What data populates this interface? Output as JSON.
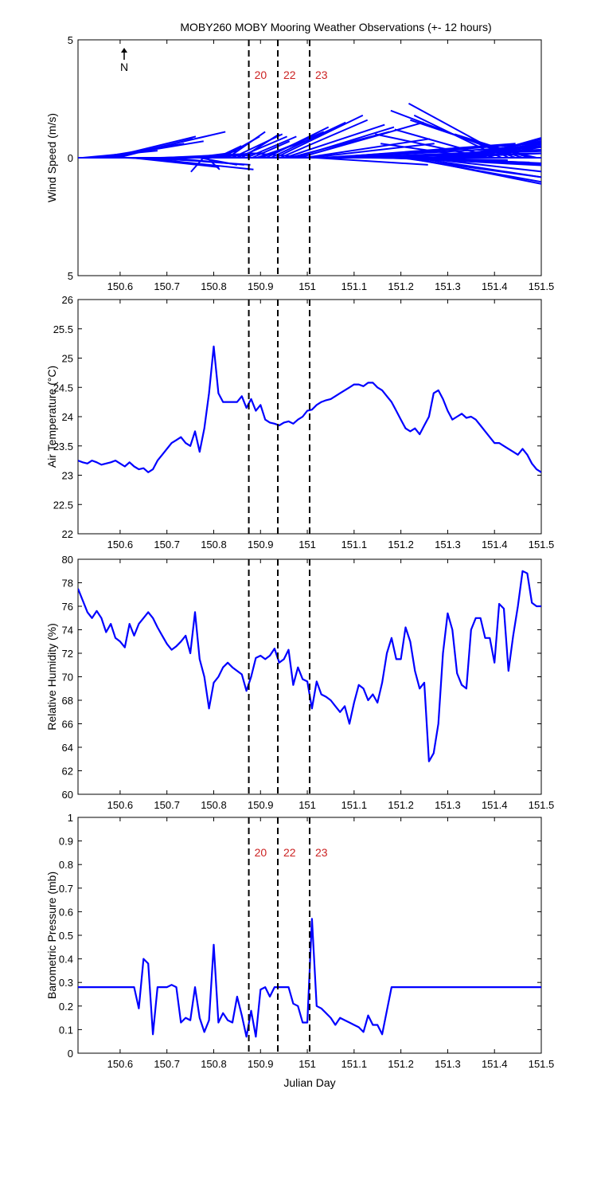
{
  "figure_title": "MOBY260 MOBY Mooring Weather Observations (+- 12 hours)",
  "north_label": "N",
  "x_tick_labels": [
    "150.6",
    "150.7",
    "150.8",
    "150.9",
    "151",
    "151.1",
    "151.2",
    "151.3",
    "151.4",
    "151.5"
  ],
  "colors": {
    "series": "#0000ff",
    "marker_line": "#000000",
    "marker_label": "#cc2222",
    "axes": "#000000"
  },
  "chart_data": [
    {
      "type": "line",
      "subtype": "wind-vector (stick) plot",
      "ylabel": "Wind Speed (m/s)",
      "xlabel": "",
      "xlim": [
        150.51,
        151.5
      ],
      "ylim": [
        -5,
        5
      ],
      "y_tick_labels": [
        "5",
        "0",
        "5"
      ],
      "markers": [
        {
          "label": "20",
          "x": 150.875
        },
        {
          "label": "22",
          "x": 150.937
        },
        {
          "label": "23",
          "x": 151.005
        }
      ],
      "vectors": [
        {
          "x": 150.52,
          "u": 0.6,
          "v": 0.3
        },
        {
          "x": 150.55,
          "u": 0.7,
          "v": 0.6
        },
        {
          "x": 150.565,
          "u": 0.8,
          "v": 0.7
        },
        {
          "x": 150.575,
          "u": 0.7,
          "v": 0.9
        },
        {
          "x": 150.585,
          "u": 0.9,
          "v": 1.1
        },
        {
          "x": 150.595,
          "u": 0.6,
          "v": 0.8
        },
        {
          "x": 150.61,
          "u": 0.5,
          "v": -0.1
        },
        {
          "x": 150.625,
          "u": 0.7,
          "v": -0.4
        },
        {
          "x": 150.645,
          "u": 0.9,
          "v": -0.5
        },
        {
          "x": 150.665,
          "u": 0.8,
          "v": -0.3
        },
        {
          "x": 150.685,
          "u": 0.7,
          "v": 0.1
        },
        {
          "x": 150.695,
          "u": 0.8,
          "v": 0.2
        },
        {
          "x": 150.705,
          "u": 0.6,
          "v": -0.3
        },
        {
          "x": 150.72,
          "u": 0.6,
          "v": 0.1
        },
        {
          "x": 150.74,
          "u": 0.6,
          "v": 0.2
        },
        {
          "x": 150.755,
          "u": 0.3,
          "v": 0.2
        },
        {
          "x": 150.77,
          "u": 0.3,
          "v": -0.3
        },
        {
          "x": 150.778,
          "u": -0.1,
          "v": -0.6
        },
        {
          "x": 150.786,
          "u": 0.1,
          "v": -0.5
        },
        {
          "x": 150.796,
          "u": 0.2,
          "v": 0.3
        },
        {
          "x": 150.806,
          "u": 0.2,
          "v": 0.5
        },
        {
          "x": 150.818,
          "u": 0.3,
          "v": 0.9
        },
        {
          "x": 150.83,
          "u": 0.3,
          "v": 1.1
        },
        {
          "x": 150.84,
          "u": 0.4,
          "v": 1.0
        },
        {
          "x": 150.85,
          "u": 0.4,
          "v": 0.9
        },
        {
          "x": 150.86,
          "u": 0.3,
          "v": 1.0
        },
        {
          "x": 150.87,
          "u": 0.4,
          "v": 0.9
        },
        {
          "x": 150.882,
          "u": 0.3,
          "v": 0.7
        },
        {
          "x": 150.892,
          "u": 0.5,
          "v": 0.9
        },
        {
          "x": 150.902,
          "u": 0.5,
          "v": 1.1
        },
        {
          "x": 150.912,
          "u": 0.5,
          "v": 1.3
        },
        {
          "x": 150.922,
          "u": 0.6,
          "v": 1.5
        },
        {
          "x": 150.932,
          "u": 0.7,
          "v": 1.8
        },
        {
          "x": 150.942,
          "u": 0.7,
          "v": 1.6
        },
        {
          "x": 150.952,
          "u": 0.8,
          "v": 1.4
        },
        {
          "x": 150.962,
          "u": 0.8,
          "v": 1.1
        },
        {
          "x": 150.972,
          "u": 0.8,
          "v": 1.3
        },
        {
          "x": 150.982,
          "u": 1.0,
          "v": 1.5
        },
        {
          "x": 150.995,
          "u": 1.0,
          "v": 0.8
        },
        {
          "x": 151.005,
          "u": 1.0,
          "v": 0.6
        },
        {
          "x": 151.01,
          "u": -0.5,
          "v": 0.2
        },
        {
          "x": 151.018,
          "u": 0.9,
          "v": -0.3
        },
        {
          "x": 151.03,
          "u": 1.2,
          "v": 0.4
        },
        {
          "x": 151.045,
          "u": 1.5,
          "v": 0.6
        },
        {
          "x": 151.06,
          "u": 1.7,
          "v": 0.5
        },
        {
          "x": 151.075,
          "u": 1.8,
          "v": 0.7
        },
        {
          "x": 151.09,
          "u": 1.8,
          "v": 0.4
        },
        {
          "x": 151.105,
          "u": 1.6,
          "v": 0.3
        },
        {
          "x": 151.12,
          "u": 1.5,
          "v": 0.2
        },
        {
          "x": 151.135,
          "u": 1.1,
          "v": -0.1
        },
        {
          "x": 151.155,
          "u": 1.2,
          "v": -0.2
        },
        {
          "x": 151.175,
          "u": 1.4,
          "v": -0.3
        },
        {
          "x": 151.19,
          "u": 1.8,
          "v": -0.5
        },
        {
          "x": 151.2,
          "u": 1.5,
          "v": -1.1
        },
        {
          "x": 151.21,
          "u": 1.7,
          "v": -1.6
        },
        {
          "x": 151.22,
          "u": 1.8,
          "v": -1.9
        },
        {
          "x": 151.23,
          "u": 1.6,
          "v": -1.3
        },
        {
          "x": 151.24,
          "u": 1.5,
          "v": -0.9
        },
        {
          "x": 151.25,
          "u": 1.2,
          "v": -0.3
        },
        {
          "x": 151.26,
          "u": 1.0,
          "v": 0.2
        },
        {
          "x": 151.27,
          "u": 1.3,
          "v": 0.7
        },
        {
          "x": 151.28,
          "u": 1.4,
          "v": 1.0
        },
        {
          "x": 151.29,
          "u": 1.6,
          "v": 1.4
        },
        {
          "x": 151.3,
          "u": 1.7,
          "v": 1.6
        },
        {
          "x": 151.31,
          "u": 1.5,
          "v": 1.2
        },
        {
          "x": 151.32,
          "u": 1.2,
          "v": 0.9
        },
        {
          "x": 151.33,
          "u": 1.1,
          "v": 1.1
        },
        {
          "x": 151.34,
          "u": 1.0,
          "v": 1.3
        },
        {
          "x": 151.35,
          "u": 0.8,
          "v": 1.2
        },
        {
          "x": 151.36,
          "u": 0.7,
          "v": 0.6
        },
        {
          "x": 151.37,
          "u": -0.8,
          "v": 0.6
        },
        {
          "x": 151.385,
          "u": -0.9,
          "v": 1.0
        },
        {
          "x": 151.4,
          "u": -0.8,
          "v": 1.2
        },
        {
          "x": 151.415,
          "u": -0.7,
          "v": 1.8
        },
        {
          "x": 151.43,
          "u": -0.8,
          "v": 2.3
        },
        {
          "x": 151.445,
          "u": -1.0,
          "v": 2.0
        },
        {
          "x": 151.46,
          "u": -0.9,
          "v": 1.6
        },
        {
          "x": 151.475,
          "u": -0.6,
          "v": 1.0
        },
        {
          "x": 151.49,
          "u": -0.4,
          "v": 0.5
        }
      ]
    },
    {
      "type": "line",
      "ylabel": "Air Temperature (°C)",
      "xlabel": "",
      "xlim": [
        150.51,
        151.5
      ],
      "ylim": [
        22,
        26
      ],
      "y_tick_labels": [
        "22",
        "22.5",
        "23",
        "23.5",
        "24",
        "24.5",
        "25",
        "25.5",
        "26"
      ],
      "markers": [
        {
          "label": "",
          "x": 150.875
        },
        {
          "label": "",
          "x": 150.937
        },
        {
          "label": "",
          "x": 151.005
        }
      ],
      "x": [
        150.51,
        150.52,
        150.53,
        150.54,
        150.55,
        150.56,
        150.57,
        150.58,
        150.59,
        150.6,
        150.61,
        150.62,
        150.63,
        150.64,
        150.65,
        150.66,
        150.67,
        150.68,
        150.69,
        150.7,
        150.71,
        150.72,
        150.73,
        150.74,
        150.75,
        150.76,
        150.77,
        150.78,
        150.79,
        150.8,
        150.81,
        150.82,
        150.83,
        150.84,
        150.85,
        150.86,
        150.87,
        150.88,
        150.89,
        150.9,
        150.91,
        150.92,
        150.93,
        150.94,
        150.95,
        150.96,
        150.97,
        150.98,
        150.99,
        151.0,
        151.01,
        151.02,
        151.03,
        151.04,
        151.05,
        151.06,
        151.07,
        151.08,
        151.09,
        151.1,
        151.11,
        151.12,
        151.13,
        151.14,
        151.15,
        151.16,
        151.17,
        151.18,
        151.19,
        151.2,
        151.21,
        151.22,
        151.23,
        151.24,
        151.25,
        151.26,
        151.27,
        151.28,
        151.29,
        151.3,
        151.31,
        151.32,
        151.33,
        151.34,
        151.35,
        151.36,
        151.37,
        151.38,
        151.39,
        151.4,
        151.41,
        151.42,
        151.43,
        151.44,
        151.45,
        151.46,
        151.47,
        151.48,
        151.49,
        151.5
      ],
      "values": [
        23.25,
        23.22,
        23.2,
        23.25,
        23.22,
        23.18,
        23.2,
        23.22,
        23.25,
        23.2,
        23.15,
        23.22,
        23.15,
        23.1,
        23.12,
        23.05,
        23.1,
        23.25,
        23.35,
        23.45,
        23.55,
        23.6,
        23.65,
        23.55,
        23.5,
        23.75,
        23.4,
        23.8,
        24.4,
        25.2,
        24.4,
        24.25,
        24.25,
        24.25,
        24.25,
        24.35,
        24.15,
        24.3,
        24.1,
        24.2,
        23.95,
        23.9,
        23.88,
        23.85,
        23.9,
        23.92,
        23.88,
        23.95,
        24.0,
        24.1,
        24.12,
        24.2,
        24.25,
        24.28,
        24.3,
        24.35,
        24.4,
        24.45,
        24.5,
        24.55,
        24.55,
        24.52,
        24.58,
        24.58,
        24.5,
        24.45,
        24.35,
        24.25,
        24.1,
        23.95,
        23.8,
        23.75,
        23.8,
        23.7,
        23.85,
        24.0,
        24.4,
        24.45,
        24.3,
        24.1,
        23.95,
        24.0,
        24.05,
        23.98,
        24.0,
        23.95,
        23.85,
        23.75,
        23.65,
        23.55,
        23.55,
        23.5,
        23.45,
        23.4,
        23.35,
        23.45,
        23.35,
        23.2,
        23.1,
        23.05
      ]
    },
    {
      "type": "line",
      "ylabel": "Relative Humidity (%)",
      "xlabel": "",
      "xlim": [
        150.51,
        151.5
      ],
      "ylim": [
        60,
        80
      ],
      "y_tick_labels": [
        "60",
        "62",
        "64",
        "66",
        "68",
        "70",
        "72",
        "74",
        "76",
        "78",
        "80"
      ],
      "markers": [
        {
          "label": "",
          "x": 150.875
        },
        {
          "label": "",
          "x": 150.937
        },
        {
          "label": "",
          "x": 151.005
        }
      ],
      "x": [
        150.51,
        150.52,
        150.53,
        150.54,
        150.55,
        150.56,
        150.57,
        150.58,
        150.59,
        150.6,
        150.61,
        150.62,
        150.63,
        150.64,
        150.65,
        150.66,
        150.67,
        150.68,
        150.69,
        150.7,
        150.71,
        150.72,
        150.73,
        150.74,
        150.75,
        150.76,
        150.77,
        150.78,
        150.79,
        150.8,
        150.81,
        150.82,
        150.83,
        150.84,
        150.85,
        150.86,
        150.87,
        150.88,
        150.89,
        150.9,
        150.91,
        150.92,
        150.93,
        150.94,
        150.95,
        150.96,
        150.97,
        150.98,
        150.99,
        151.0,
        151.01,
        151.02,
        151.03,
        151.04,
        151.05,
        151.06,
        151.07,
        151.08,
        151.09,
        151.1,
        151.11,
        151.12,
        151.13,
        151.14,
        151.15,
        151.16,
        151.17,
        151.18,
        151.19,
        151.2,
        151.21,
        151.22,
        151.23,
        151.24,
        151.25,
        151.26,
        151.27,
        151.28,
        151.29,
        151.3,
        151.31,
        151.32,
        151.33,
        151.34,
        151.35,
        151.36,
        151.37,
        151.38,
        151.39,
        151.4,
        151.41,
        151.42,
        151.43,
        151.44,
        151.45,
        151.46,
        151.47,
        151.48,
        151.49,
        151.5
      ],
      "values": [
        77.5,
        76.5,
        75.5,
        75.0,
        75.6,
        75.0,
        73.8,
        74.5,
        73.3,
        73.0,
        72.5,
        74.5,
        73.5,
        74.5,
        75.0,
        75.5,
        75.0,
        74.2,
        73.5,
        72.8,
        72.3,
        72.6,
        73.0,
        73.5,
        72.0,
        75.5,
        71.5,
        70.0,
        67.3,
        69.5,
        70.0,
        70.8,
        71.2,
        70.8,
        70.5,
        70.2,
        68.8,
        70.0,
        71.6,
        71.8,
        71.5,
        71.8,
        72.4,
        71.2,
        71.5,
        72.3,
        69.3,
        70.8,
        69.8,
        69.6,
        67.3,
        69.6,
        68.5,
        68.3,
        68.0,
        67.5,
        67.0,
        67.5,
        66.0,
        67.8,
        69.3,
        69.0,
        68.0,
        68.5,
        67.8,
        69.5,
        72.0,
        73.3,
        71.5,
        71.5,
        74.2,
        73.0,
        70.5,
        69.0,
        69.5,
        62.8,
        63.5,
        66.0,
        72.0,
        75.4,
        74.0,
        70.3,
        69.3,
        69.0,
        74.0,
        75.0,
        75.0,
        73.3,
        73.3,
        71.2,
        76.2,
        75.8,
        70.5,
        73.5,
        76.0,
        79.0,
        78.8,
        76.3,
        76.0,
        76.0
      ]
    },
    {
      "type": "line",
      "ylabel": "Barometric Pressure (mb)",
      "xlabel": "Julian Day",
      "xlim": [
        150.51,
        151.5
      ],
      "ylim": [
        0,
        1
      ],
      "y_tick_labels": [
        "0",
        "0.1",
        "0.2",
        "0.3",
        "0.4",
        "0.5",
        "0.6",
        "0.7",
        "0.8",
        "0.9",
        "1"
      ],
      "markers": [
        {
          "label": "20",
          "x": 150.875
        },
        {
          "label": "22",
          "x": 150.937
        },
        {
          "label": "23",
          "x": 151.005
        }
      ],
      "x": [
        150.51,
        150.63,
        150.64,
        150.65,
        150.66,
        150.67,
        150.68,
        150.69,
        150.7,
        150.71,
        150.72,
        150.73,
        150.74,
        150.75,
        150.76,
        150.77,
        150.78,
        150.79,
        150.8,
        150.81,
        150.82,
        150.83,
        150.84,
        150.85,
        150.86,
        150.87,
        150.88,
        150.89,
        150.9,
        150.91,
        150.92,
        150.93,
        150.94,
        150.95,
        150.96,
        150.97,
        150.98,
        150.99,
        151.0,
        151.01,
        151.02,
        151.03,
        151.04,
        151.05,
        151.06,
        151.07,
        151.08,
        151.09,
        151.1,
        151.11,
        151.12,
        151.13,
        151.14,
        151.15,
        151.16,
        151.17,
        151.18,
        151.19,
        151.2,
        151.5
      ],
      "values": [
        0.28,
        0.28,
        0.19,
        0.4,
        0.38,
        0.08,
        0.28,
        0.28,
        0.28,
        0.29,
        0.28,
        0.13,
        0.15,
        0.14,
        0.28,
        0.15,
        0.09,
        0.14,
        0.46,
        0.13,
        0.17,
        0.14,
        0.13,
        0.24,
        0.16,
        0.07,
        0.18,
        0.07,
        0.27,
        0.28,
        0.24,
        0.28,
        0.28,
        0.28,
        0.28,
        0.21,
        0.2,
        0.13,
        0.13,
        0.57,
        0.2,
        0.19,
        0.17,
        0.15,
        0.12,
        0.15,
        0.14,
        0.13,
        0.12,
        0.11,
        0.09,
        0.16,
        0.12,
        0.12,
        0.08,
        0.18,
        0.28,
        0.28,
        0.28,
        0.28
      ]
    }
  ]
}
